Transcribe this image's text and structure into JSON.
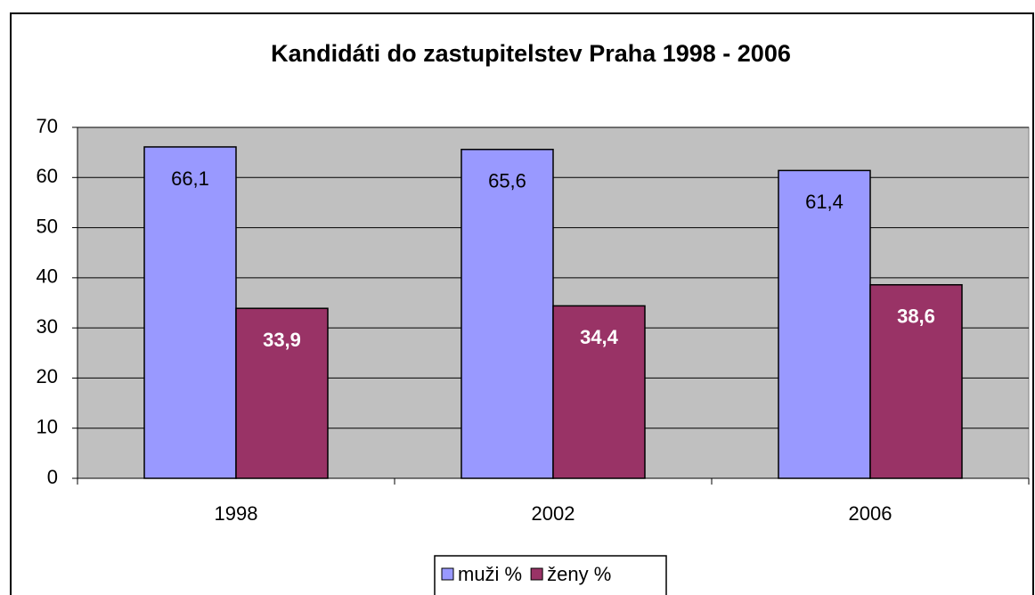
{
  "chart_data": {
    "type": "bar",
    "title": "Kandidáti do zastupitelstev Praha 1998 - 2006",
    "categories": [
      "1998",
      "2002",
      "2006"
    ],
    "series": [
      {
        "name": "muži %",
        "color": "#9999ff",
        "values": [
          66.1,
          65.6,
          61.4
        ],
        "value_labels": [
          "66,1",
          "65,6",
          "61,4"
        ]
      },
      {
        "name": "ženy %",
        "color": "#993366",
        "values": [
          33.9,
          34.4,
          38.6
        ],
        "value_labels": [
          "33,9",
          "34,4",
          "38,6"
        ]
      }
    ],
    "ylim": [
      0,
      70
    ],
    "yticks": [
      0,
      10,
      20,
      30,
      40,
      50,
      60,
      70
    ],
    "grid": true,
    "legend": "bottom"
  }
}
